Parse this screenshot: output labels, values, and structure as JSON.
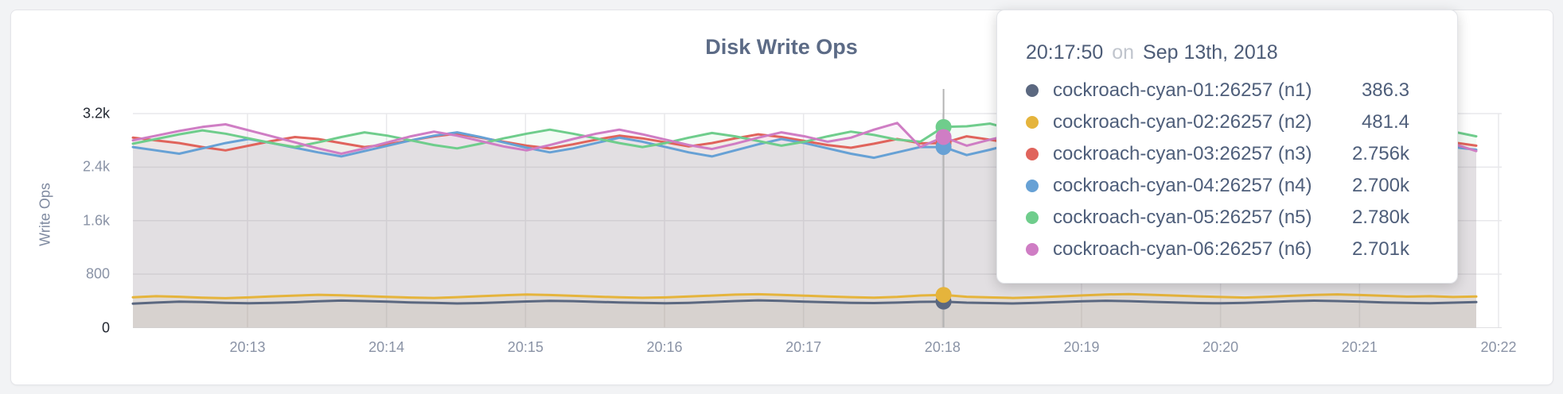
{
  "tooltip": {
    "time": "20:17:50",
    "conjunction": "on",
    "date": "Sep 13th, 2018"
  },
  "chart_data": {
    "type": "line",
    "title": "Disk Write Ops",
    "xlabel": "",
    "ylabel": "Write Ops",
    "ylim": [
      0,
      3200
    ],
    "grid": true,
    "legend_position": "tooltip",
    "y_ticks": [
      {
        "value": 0,
        "label": "0",
        "dark": true
      },
      {
        "value": 800,
        "label": "800",
        "dark": false
      },
      {
        "value": 1600,
        "label": "1.6k",
        "dark": false
      },
      {
        "value": 2400,
        "label": "2.4k",
        "dark": false
      },
      {
        "value": 3200,
        "label": "3.2k",
        "dark": true
      }
    ],
    "x_tick_labels": [
      "20:13",
      "20:14",
      "20:15",
      "20:16",
      "20:17",
      "20:18",
      "20:19",
      "20:20",
      "20:21",
      "20:22"
    ],
    "x_start": "20:12:10",
    "x_end": "20:21:50",
    "x_step_seconds": 10,
    "hovered_index": 34,
    "hovered_time": "20:17:50",
    "crosshair_index": 35,
    "series": [
      {
        "name": "cockroach-cyan-01:26257 (n1)",
        "color": "#5B6880",
        "hover_value_display": "386.3",
        "hover_value": 386.3,
        "values": [
          360,
          375,
          390,
          382,
          370,
          365,
          372,
          380,
          395,
          405,
          398,
          388,
          378,
          370,
          362,
          368,
          380,
          392,
          400,
          396,
          386,
          378,
          370,
          365,
          372,
          385,
          398,
          408,
          400,
          390,
          380,
          372,
          368,
          375,
          386.3,
          390,
          374,
          368,
          362,
          370,
          382,
          394,
          402,
          396,
          386,
          376,
          368,
          364,
          372,
          384,
          396,
          404,
          398,
          388,
          378,
          370,
          366,
          374,
          382
        ]
      },
      {
        "name": "cockroach-cyan-02:26257 (n2)",
        "color": "#E5B43C",
        "hover_value_display": "481.4",
        "hover_value": 481.4,
        "values": [
          455,
          470,
          462,
          448,
          440,
          452,
          468,
          480,
          492,
          485,
          472,
          460,
          450,
          444,
          456,
          470,
          484,
          495,
          488,
          476,
          464,
          454,
          446,
          452,
          466,
          480,
          494,
          500,
          490,
          478,
          466,
          456,
          448,
          460,
          481.4,
          490,
          462,
          452,
          444,
          454,
          468,
          482,
          496,
          502,
          492,
          480,
          468,
          458,
          450,
          462,
          476,
          490,
          498,
          488,
          476,
          464,
          470,
          458,
          466
        ]
      },
      {
        "name": "cockroach-cyan-03:26257 (n3)",
        "color": "#E0645C",
        "hover_value_display": "2.756k",
        "hover_value": 2756,
        "values": [
          2840,
          2800,
          2760,
          2700,
          2650,
          2720,
          2790,
          2850,
          2820,
          2760,
          2700,
          2740,
          2800,
          2860,
          2900,
          2840,
          2780,
          2720,
          2680,
          2740,
          2810,
          2870,
          2830,
          2770,
          2710,
          2760,
          2830,
          2890,
          2850,
          2790,
          2730,
          2690,
          2750,
          2820,
          2756,
          2760,
          2860,
          2810,
          2750,
          2700,
          2760,
          2830,
          2880,
          2840,
          2780,
          2720,
          2680,
          2730,
          2800,
          2860,
          2820,
          2760,
          2700,
          2750,
          2820,
          2870,
          2830,
          2770,
          2720
        ]
      },
      {
        "name": "cockroach-cyan-04:26257 (n4)",
        "color": "#67A1D5",
        "hover_value_display": "2.700k",
        "hover_value": 2700,
        "values": [
          2700,
          2650,
          2600,
          2680,
          2760,
          2820,
          2760,
          2690,
          2620,
          2560,
          2640,
          2720,
          2800,
          2870,
          2920,
          2850,
          2770,
          2690,
          2620,
          2680,
          2760,
          2840,
          2780,
          2700,
          2620,
          2560,
          2650,
          2740,
          2820,
          2760,
          2680,
          2600,
          2540,
          2620,
          2700,
          2700,
          2580,
          2660,
          2750,
          2830,
          2770,
          2690,
          2610,
          2670,
          2750,
          2830,
          2890,
          2820,
          2740,
          2660,
          2600,
          2680,
          2760,
          2840,
          2780,
          2700,
          2620,
          2700,
          2660
        ]
      },
      {
        "name": "cockroach-cyan-05:26257 (n5)",
        "color": "#6FCD8C",
        "hover_value_display": "2.780k",
        "hover_value": 2780,
        "values": [
          2750,
          2820,
          2890,
          2950,
          2900,
          2830,
          2760,
          2700,
          2770,
          2850,
          2920,
          2870,
          2800,
          2730,
          2680,
          2750,
          2830,
          2900,
          2960,
          2900,
          2830,
          2760,
          2700,
          2760,
          2840,
          2910,
          2860,
          2790,
          2720,
          2780,
          2860,
          2930,
          2880,
          2810,
          2780,
          3000,
          3010,
          3050,
          2960,
          2870,
          2790,
          2720,
          2790,
          2870,
          2940,
          2890,
          2820,
          2750,
          2700,
          2770,
          2850,
          2920,
          2870,
          2800,
          2740,
          2800,
          2870,
          2930,
          2860
        ]
      },
      {
        "name": "cockroach-cyan-06:26257 (n6)",
        "color": "#CF7DC4",
        "hover_value_display": "2.701k",
        "hover_value": 2701,
        "values": [
          2800,
          2870,
          2940,
          3000,
          3040,
          2950,
          2860,
          2770,
          2680,
          2600,
          2680,
          2770,
          2860,
          2930,
          2870,
          2790,
          2710,
          2650,
          2730,
          2820,
          2900,
          2960,
          2890,
          2810,
          2730,
          2670,
          2750,
          2840,
          2920,
          2860,
          2780,
          2840,
          2960,
          3060,
          2701,
          2850,
          2720,
          2810,
          2890,
          2950,
          2880,
          2800,
          2720,
          2660,
          2740,
          2830,
          2910,
          2850,
          2770,
          2700,
          2780,
          2860,
          2930,
          2870,
          2790,
          2710,
          2670,
          2750,
          2640
        ]
      }
    ]
  }
}
